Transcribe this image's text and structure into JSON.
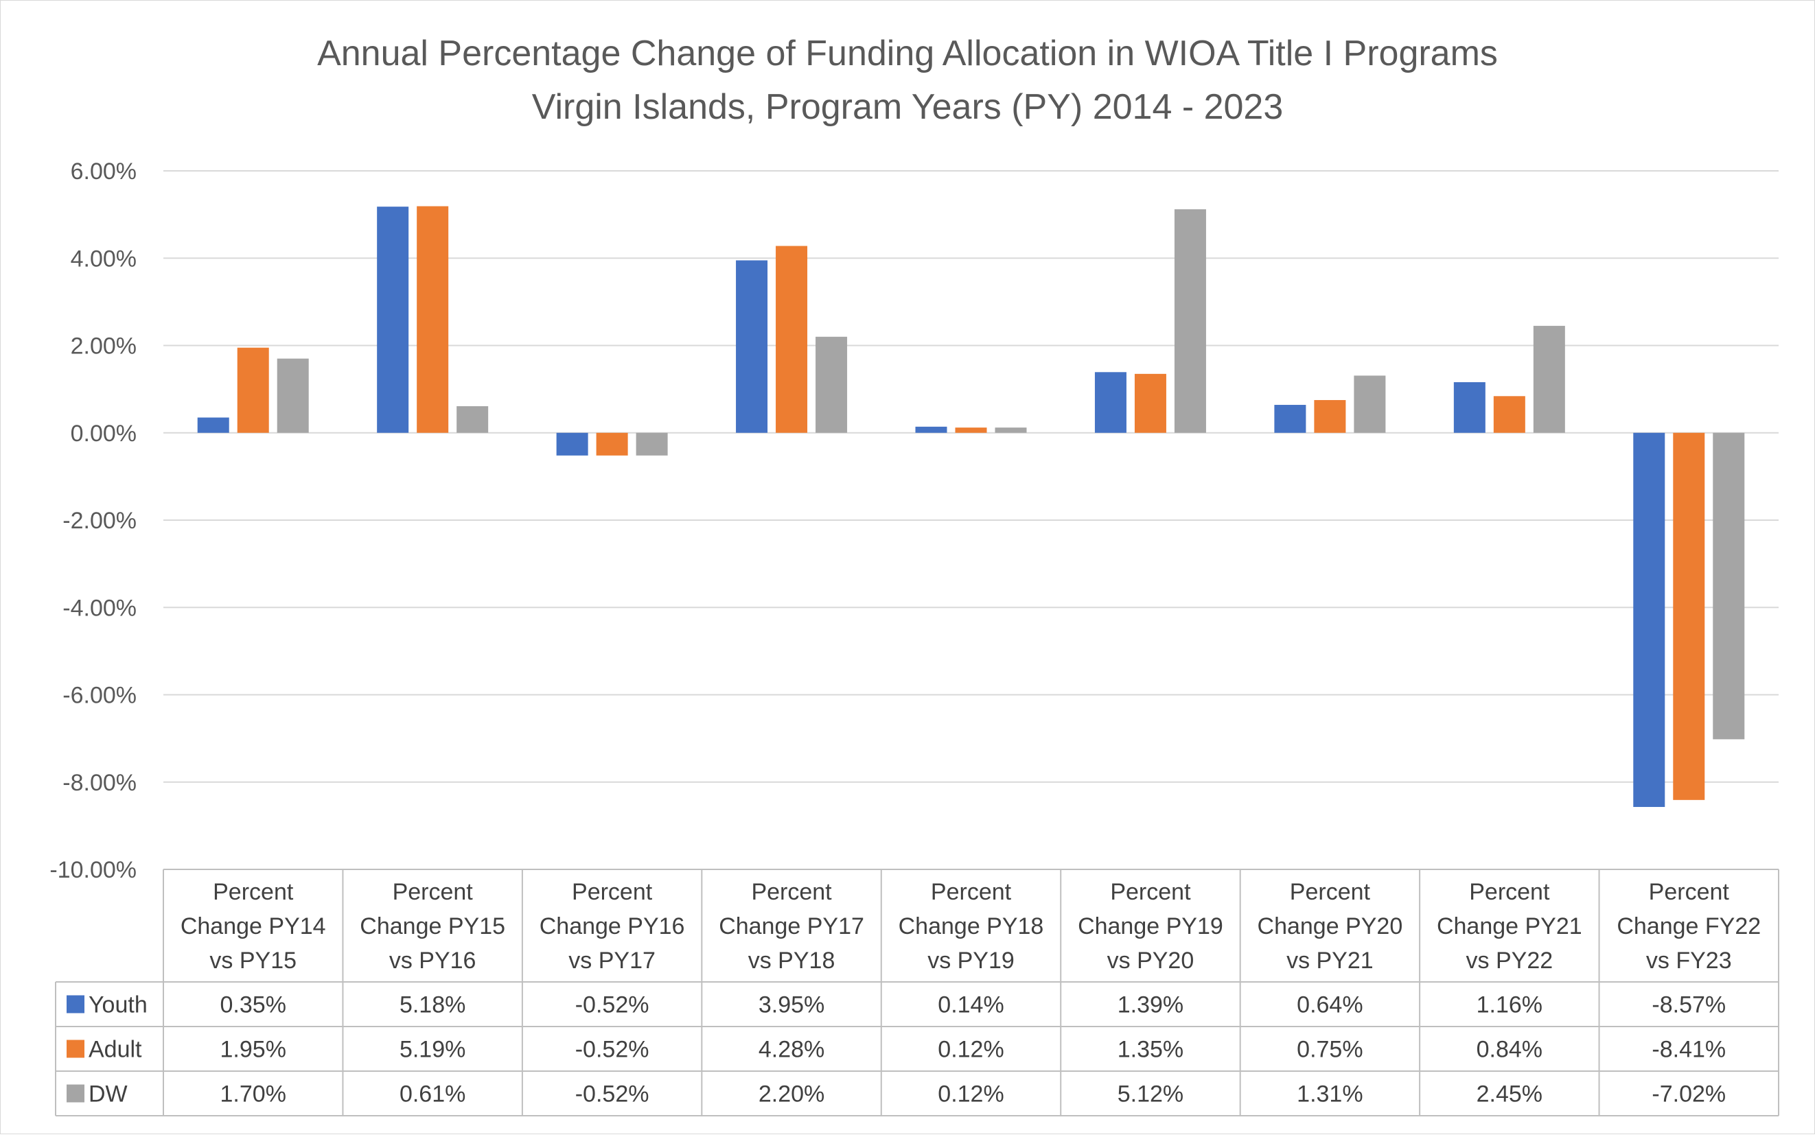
{
  "chart_data": {
    "type": "bar",
    "title": [
      "Annual Percentage Change of Funding Allocation in WIOA Title I Programs",
      "Virgin Islands, Program Years (PY) 2014 - 2023"
    ],
    "xlabel": "",
    "ylabel": "",
    "ylim": [
      -10,
      6
    ],
    "y_tick_step": 2,
    "y_tick_labels": [
      "6.00%",
      "4.00%",
      "2.00%",
      "0.00%",
      "-2.00%",
      "-4.00%",
      "-6.00%",
      "-8.00%",
      "-10.00%"
    ],
    "grid": true,
    "legend": "data-table-bottom",
    "categories": [
      [
        "Percent",
        "Change PY14",
        "vs PY15"
      ],
      [
        "Percent",
        "Change PY15",
        "vs PY16"
      ],
      [
        "Percent",
        "Change PY16",
        "vs PY17"
      ],
      [
        "Percent",
        "Change PY17",
        "vs PY18"
      ],
      [
        "Percent",
        "Change PY18",
        "vs PY19"
      ],
      [
        "Percent",
        "Change PY19",
        "vs PY20"
      ],
      [
        "Percent",
        "Change PY20",
        "vs PY21"
      ],
      [
        "Percent",
        "Change PY21",
        "vs PY22"
      ],
      [
        "Percent",
        "Change FY22",
        "vs FY23"
      ]
    ],
    "series": [
      {
        "name": "Youth",
        "color": "#4472c4",
        "values": [
          0.35,
          5.18,
          -0.52,
          3.95,
          0.14,
          1.39,
          0.64,
          1.16,
          -8.57
        ],
        "labels": [
          "0.35%",
          "5.18%",
          "-0.52%",
          "3.95%",
          "0.14%",
          "1.39%",
          "0.64%",
          "1.16%",
          "-8.57%"
        ]
      },
      {
        "name": "Adult",
        "color": "#ed7d31",
        "values": [
          1.95,
          5.19,
          -0.52,
          4.28,
          0.12,
          1.35,
          0.75,
          0.84,
          -8.41
        ],
        "labels": [
          "1.95%",
          "5.19%",
          "-0.52%",
          "4.28%",
          "0.12%",
          "1.35%",
          "0.75%",
          "0.84%",
          "-8.41%"
        ]
      },
      {
        "name": "DW",
        "color": "#a5a5a5",
        "values": [
          1.7,
          0.61,
          -0.52,
          2.2,
          0.12,
          5.12,
          1.31,
          2.45,
          -7.02
        ],
        "labels": [
          "1.70%",
          "0.61%",
          "-0.52%",
          "2.20%",
          "0.12%",
          "5.12%",
          "1.31%",
          "2.45%",
          "-7.02%"
        ]
      }
    ]
  }
}
